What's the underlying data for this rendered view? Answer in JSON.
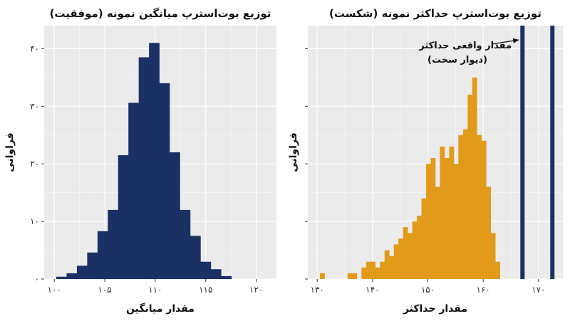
{
  "chart_data": [
    {
      "type": "bar",
      "title": "توزیع بوت‌استرپ میانگین نمونه (موفقیت)",
      "xlabel": "مقدار میانگین",
      "ylabel": "فراوانی",
      "xlim": [
        99,
        122
      ],
      "ylim": [
        0,
        44
      ],
      "xticks": [
        100,
        105,
        110,
        115,
        120
      ],
      "xtick_labels": [
        "۱۰۰",
        "۱۰۵",
        "۱۱۰",
        "۱۱۵",
        "۱۲۰"
      ],
      "yticks": [
        0,
        10,
        20,
        30,
        40
      ],
      "ytick_labels": [
        "۰",
        "۱۰",
        "۲۰",
        "۳۰",
        "۴۰"
      ],
      "bin_start": 100.2,
      "bin_width": 1.02,
      "values": [
        0.4,
        1,
        2.3,
        4.6,
        8.3,
        12,
        21.5,
        30.6,
        38.5,
        41,
        34,
        22,
        12,
        7.5,
        3,
        1.7,
        0.5
      ],
      "color": "#1b3165",
      "grid": true
    },
    {
      "type": "bar",
      "title": "توزیع بوت‌استرپ حداکثر نمونه (شکست)",
      "xlabel": "مقدار حداکثر",
      "ylabel": "فراوانی",
      "xlim": [
        128.3,
        174.4
      ],
      "ylim": [
        0,
        44
      ],
      "xticks": [
        130,
        140,
        150,
        160,
        170
      ],
      "xtick_labels": [
        "۱۳۰",
        "۱۴۰",
        "۱۵۰",
        "۱۶۰",
        "۱۷۰"
      ],
      "bin_start": 130.5,
      "bin_width": 0.834,
      "values": [
        1,
        0,
        0,
        0,
        0,
        0,
        1,
        1,
        0,
        2,
        3,
        3,
        2,
        3,
        5,
        4,
        6,
        7,
        9,
        8,
        10,
        11,
        14,
        20,
        21,
        16,
        23,
        21,
        23,
        20,
        25,
        26,
        32,
        35,
        25,
        24,
        16,
        8,
        3
      ],
      "color": "#e19a1a",
      "vlines": [
        167.1,
        172.5
      ],
      "vline_color": "#1b3165",
      "annotation": {
        "line1": "مقدار واقعی حداکثر",
        "line2": "(دیوار سخت)",
        "points_to_x": 167.1
      },
      "grid": true
    }
  ]
}
